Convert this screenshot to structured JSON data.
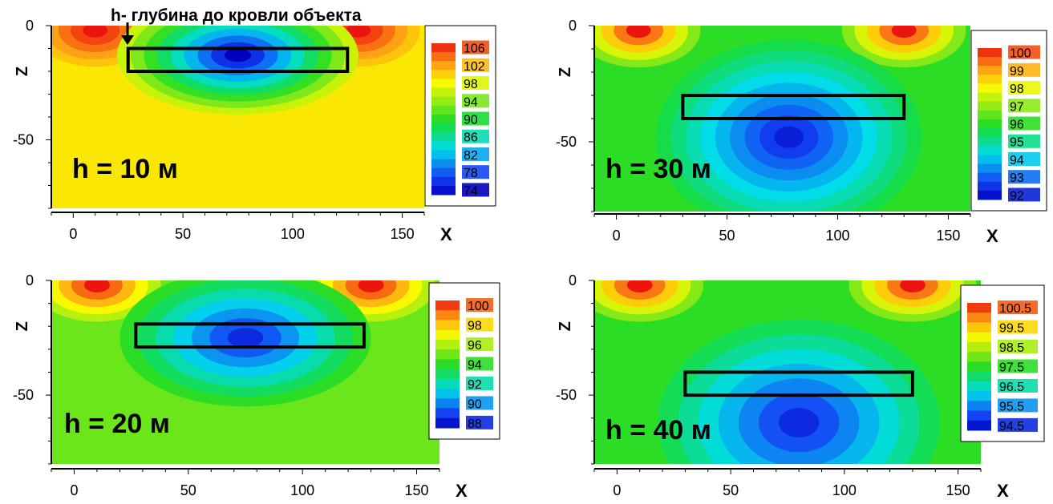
{
  "annotation": "h- глубина до кровли объекта",
  "chart_data": [
    {
      "type": "heatmap",
      "panel_label": "h = 10 м",
      "xlabel": "X",
      "ylabel": "Z",
      "x_ticks": [
        0,
        50,
        100,
        150
      ],
      "z_ticks": [
        0,
        -50
      ],
      "xlim": [
        -10,
        160
      ],
      "zlim": [
        -80,
        0
      ],
      "legend_levels": [
        "106",
        "102",
        "98",
        "94",
        "90",
        "86",
        "82",
        "78",
        "74"
      ],
      "value_range": [
        74,
        108
      ],
      "background_value": 100,
      "anomaly": {
        "center_x": 75,
        "center_z": -13,
        "radius_x": 55,
        "radius_z": 26,
        "value": 74
      },
      "object": {
        "x_from": 25,
        "x_to": 125,
        "z_top": -10,
        "z_bottom": -20
      }
    },
    {
      "type": "heatmap",
      "panel_label": "h = 30 м",
      "xlabel": "X",
      "ylabel": "Z",
      "x_ticks": [
        0,
        50,
        100,
        150
      ],
      "z_ticks": [
        0,
        -50
      ],
      "xlim": [
        -10,
        160
      ],
      "zlim": [
        -80,
        0
      ],
      "legend_levels": [
        "100",
        "99",
        "98",
        "97",
        "96",
        "95",
        "94",
        "93",
        "92"
      ],
      "value_range": [
        91.5,
        100.5
      ],
      "background_value": 96,
      "anomaly": {
        "center_x": 78,
        "center_z": -48,
        "radius_x": 60,
        "radius_z": 42,
        "value": 92
      },
      "object": {
        "x_from": 30,
        "x_to": 130,
        "z_top": -30,
        "z_bottom": -40
      }
    },
    {
      "type": "heatmap",
      "panel_label": "h = 20 м",
      "xlabel": "X",
      "ylabel": "Z",
      "x_ticks": [
        0,
        50,
        100,
        150
      ],
      "z_ticks": [
        0,
        -50
      ],
      "xlim": [
        -10,
        160
      ],
      "zlim": [
        -80,
        0
      ],
      "legend_levels": [
        "100",
        "98",
        "96",
        "94",
        "92",
        "90",
        "88"
      ],
      "value_range": [
        87,
        101
      ],
      "background_value": 95,
      "anomaly": {
        "center_x": 75,
        "center_z": -25,
        "radius_x": 55,
        "radius_z": 30,
        "value": 88
      },
      "object": {
        "x_from": 27,
        "x_to": 127,
        "z_top": -19,
        "z_bottom": -29
      }
    },
    {
      "type": "heatmap",
      "panel_label": "h = 40 м",
      "xlabel": "X",
      "ylabel": "Z",
      "x_ticks": [
        0,
        50,
        100,
        150
      ],
      "z_ticks": [
        0,
        -50
      ],
      "xlim": [
        -10,
        160
      ],
      "zlim": [
        -80,
        0
      ],
      "legend_levels": [
        "100.5",
        "99.5",
        "98.5",
        "97.5",
        "96.5",
        "95.5",
        "94.5"
      ],
      "value_range": [
        94,
        101
      ],
      "background_value": 97.5,
      "anomaly": {
        "center_x": 80,
        "center_z": -62,
        "radius_x": 62,
        "radius_z": 45,
        "value": 94.5
      },
      "object": {
        "x_from": 30,
        "x_to": 130,
        "z_top": -40,
        "z_bottom": -50
      }
    }
  ]
}
